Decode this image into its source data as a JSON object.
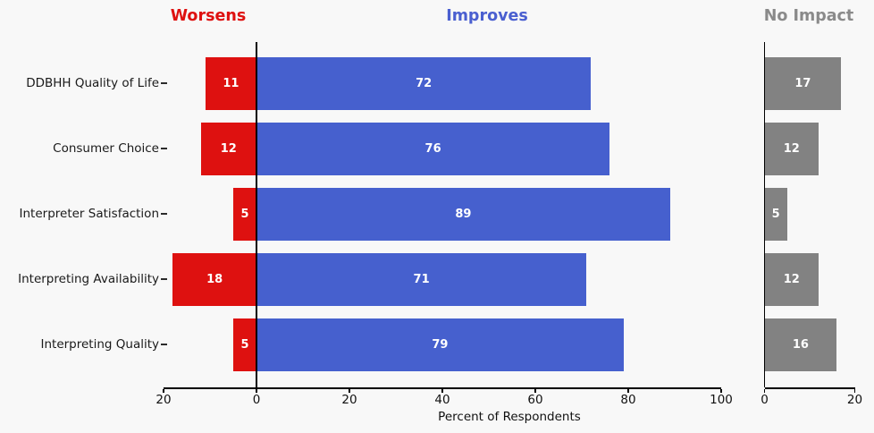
{
  "figure": {
    "background": "#f8f8f8"
  },
  "chart_data": {
    "type": "bar",
    "orientation": "horizontal",
    "layout": "diverging bars (Worsens left / Improves right of zero line) plus separate No Impact panel",
    "title": "",
    "xlabel": "Percent of Respondents",
    "grid": false,
    "legend_position": "panel titles above chart act as series labels",
    "categories": [
      "DDBHH Quality of Life",
      "Consumer Choice",
      "Interpreter Satisfaction",
      "Interpreting Availability",
      "Interpreting Quality"
    ],
    "series": [
      {
        "name": "Worsens",
        "panel": "main",
        "direction": "left",
        "color": "#de1110",
        "values": [
          11,
          12,
          5,
          18,
          5
        ]
      },
      {
        "name": "Improves",
        "panel": "main",
        "direction": "right",
        "color": "#4660ce",
        "values": [
          72,
          76,
          89,
          71,
          79
        ]
      },
      {
        "name": "No Impact",
        "panel": "impact",
        "direction": "right",
        "color": "#828282",
        "values": [
          17,
          12,
          5,
          12,
          16
        ]
      }
    ],
    "panels": [
      {
        "title": "Worsens",
        "title_color": "#de1110"
      },
      {
        "title": "Improves",
        "title_color": "#4a5fd0"
      },
      {
        "title": "No Impact",
        "title_color": "#8a8a8a"
      }
    ],
    "main_axis": {
      "range": [
        -20,
        100
      ],
      "ticks": [
        {
          "label": "20",
          "value": -20
        },
        {
          "label": "0",
          "value": 0
        },
        {
          "label": "20",
          "value": 20
        },
        {
          "label": "40",
          "value": 40
        },
        {
          "label": "60",
          "value": 60
        },
        {
          "label": "80",
          "value": 80
        },
        {
          "label": "100",
          "value": 100
        }
      ]
    },
    "impact_axis": {
      "range": [
        0,
        20
      ],
      "ticks": [
        {
          "label": "0",
          "value": 0
        },
        {
          "label": "20",
          "value": 20
        }
      ]
    },
    "value_label_color": "#ffffff"
  }
}
